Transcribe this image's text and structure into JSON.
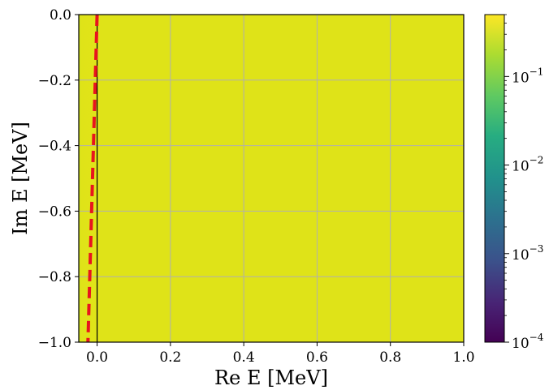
{
  "chart_data": {
    "type": "heatmap",
    "title": "",
    "xlabel": "Re E [MeV]",
    "ylabel": "Im E [MeV]",
    "xlim": [
      -0.05,
      1.0
    ],
    "ylim": [
      -1.0,
      0.0
    ],
    "xticks": [
      0.0,
      0.2,
      0.4,
      0.6,
      0.8,
      1.0
    ],
    "xtick_labels": [
      "0.0",
      "0.2",
      "0.4",
      "0.6",
      "0.8",
      "1.0"
    ],
    "yticks": [
      0.0,
      -0.2,
      -0.4,
      -0.6,
      -0.8,
      -1.0
    ],
    "ytick_labels": [
      "0.0",
      "−0.2",
      "−0.4",
      "−0.6",
      "−0.8",
      "−1.0"
    ],
    "grid": true,
    "colorbar": {
      "scale": "log",
      "range": [
        0.0001,
        0.5
      ],
      "colormap": "viridis",
      "ticks": [
        0.1,
        0.01,
        0.001,
        0.0001
      ],
      "tick_bases": [
        "10",
        "10",
        "10",
        "10"
      ],
      "tick_exponents": [
        "−1",
        "−2",
        "−3",
        "−4"
      ]
    },
    "field_description_values": {
      "dominant_value": 0.45,
      "left_edge_value": 0.3
    },
    "vertical_line": {
      "x": 0.0,
      "color": "#000000"
    },
    "dashed_line": {
      "color": "#e8141e",
      "style": "dashed",
      "points": [
        [
          0.0,
          0.0
        ],
        [
          -0.025,
          -1.0
        ]
      ]
    }
  }
}
